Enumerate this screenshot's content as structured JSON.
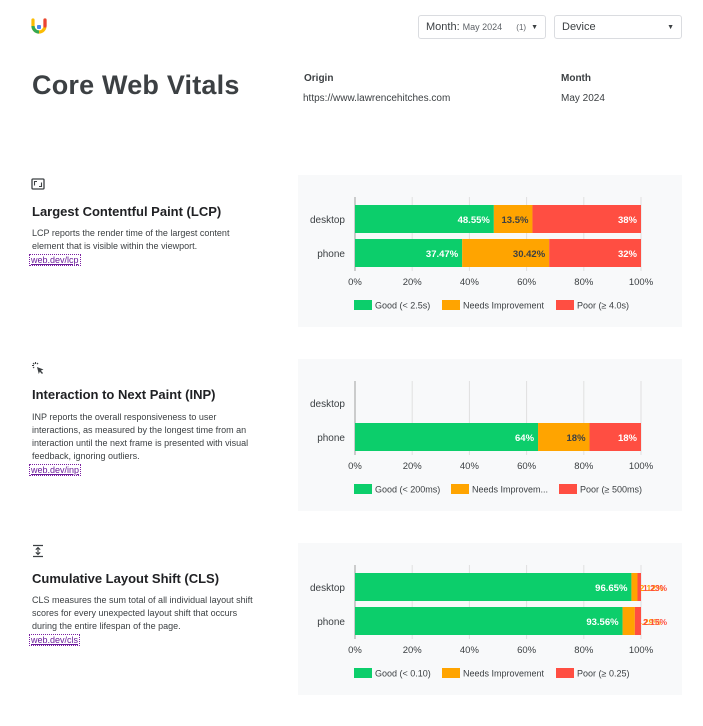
{
  "controls": {
    "month_label": "Month:",
    "month_value": "May 2024",
    "month_count": "(1)",
    "device_label": "Device"
  },
  "header": {
    "title": "Core Web Vitals",
    "origin_label": "Origin",
    "origin_value": "https://www.lawrencehitches.com",
    "month_label": "Month",
    "month_value": "May 2024"
  },
  "metrics": [
    {
      "icon": "lcp-frame-icon",
      "title": "Largest Contentful Paint (LCP)",
      "description": "LCP reports the render time of the largest content element that is visible within the viewport.",
      "link": "web.dev/lcp"
    },
    {
      "icon": "pointer-click-icon",
      "title": "Interaction to Next Paint (INP)",
      "description": "INP reports the overall responsiveness to user interactions, as measured by the longest time from an interaction until the next frame is presented with visual feedback, ignoring outliers.",
      "link": "web.dev/inp"
    },
    {
      "icon": "vertical-shift-icon",
      "title": "Cumulative Layout Shift (CLS)",
      "description": "CLS measures the sum total of all individual layout shift scores for every unexpected layout shift that occurs during the entire lifespan of the page.",
      "link": "web.dev/cls"
    }
  ],
  "colors": {
    "good": "#0cce6b",
    "needs": "#ffa400",
    "poor": "#ff4e42"
  },
  "chart_data": [
    {
      "type": "bar",
      "orientation": "horizontal",
      "stacked": true,
      "categories": [
        "desktop",
        "phone"
      ],
      "series": [
        {
          "name": "Good (< 2.5s)",
          "values": [
            48.55,
            37.47
          ],
          "labels": [
            "48.55%",
            "37.47%"
          ]
        },
        {
          "name": "Needs Improvement",
          "values": [
            13.5,
            30.42
          ],
          "labels": [
            "13.5%",
            "30.42%"
          ]
        },
        {
          "name": "Poor (≥ 4.0s)",
          "values": [
            37.95,
            32.11
          ],
          "labels": [
            "38%",
            "32%"
          ]
        }
      ],
      "xticks": [
        "0%",
        "20%",
        "40%",
        "60%",
        "80%",
        "100%"
      ],
      "xlim": [
        0,
        100
      ],
      "legend": "bottom"
    },
    {
      "type": "bar",
      "orientation": "horizontal",
      "stacked": true,
      "categories": [
        "desktop",
        "phone"
      ],
      "series": [
        {
          "name": "Good (< 200ms)",
          "values": [
            0,
            64
          ],
          "labels": [
            "",
            "64%"
          ]
        },
        {
          "name": "Needs Improvem...",
          "values": [
            0,
            18
          ],
          "labels": [
            "",
            "18%"
          ]
        },
        {
          "name": "Poor (≥ 500ms)",
          "values": [
            0,
            18
          ],
          "labels": [
            "",
            "18%"
          ]
        }
      ],
      "xticks": [
        "0%",
        "20%",
        "40%",
        "60%",
        "80%",
        "100%"
      ],
      "xlim": [
        0,
        100
      ],
      "legend": "bottom"
    },
    {
      "type": "bar",
      "orientation": "horizontal",
      "stacked": true,
      "categories": [
        "desktop",
        "phone"
      ],
      "series": [
        {
          "name": "Good (< 0.10)",
          "values": [
            96.65,
            93.56
          ],
          "labels": [
            "96.65%",
            "93.56%"
          ]
        },
        {
          "name": "Needs Improvement",
          "values": [
            2.12,
            4.29
          ],
          "labels": [
            "2.12%",
            "4.29%"
          ]
        },
        {
          "name": "Poor (≥ 0.25)",
          "values": [
            1.23,
            2.15
          ],
          "labels": [
            "1.23%",
            "2.15%"
          ]
        }
      ],
      "xticks": [
        "0%",
        "20%",
        "40%",
        "60%",
        "80%",
        "100%"
      ],
      "xlim": [
        0,
        100
      ],
      "legend": "bottom"
    }
  ]
}
